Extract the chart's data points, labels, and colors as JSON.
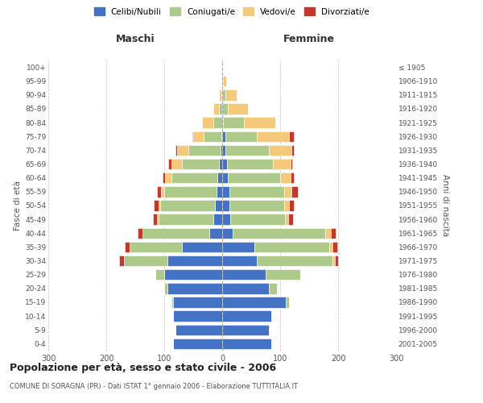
{
  "age_groups": [
    "0-4",
    "5-9",
    "10-14",
    "15-19",
    "20-24",
    "25-29",
    "30-34",
    "35-39",
    "40-44",
    "45-49",
    "50-54",
    "55-59",
    "60-64",
    "65-69",
    "70-74",
    "75-79",
    "80-84",
    "85-89",
    "90-94",
    "95-99",
    "100+"
  ],
  "birth_years": [
    "2001-2005",
    "1996-2000",
    "1991-1995",
    "1986-1990",
    "1981-1985",
    "1976-1980",
    "1971-1975",
    "1966-1970",
    "1961-1965",
    "1956-1960",
    "1951-1955",
    "1946-1950",
    "1941-1945",
    "1936-1940",
    "1931-1935",
    "1926-1930",
    "1921-1925",
    "1916-1920",
    "1911-1915",
    "1906-1910",
    "≤ 1905"
  ],
  "colors": {
    "celibi": "#4472C4",
    "coniugati": "#AECA8A",
    "vedovi": "#F5C97A",
    "divorziati": "#C0392B"
  },
  "males": {
    "celibi": [
      85,
      80,
      85,
      85,
      95,
      100,
      95,
      70,
      22,
      15,
      12,
      10,
      8,
      5,
      3,
      2,
      0,
      0,
      0,
      0,
      0
    ],
    "coniugati": [
      0,
      0,
      0,
      2,
      5,
      15,
      75,
      90,
      115,
      95,
      95,
      90,
      80,
      65,
      55,
      30,
      15,
      5,
      2,
      1,
      0
    ],
    "vedovi": [
      0,
      0,
      0,
      0,
      0,
      0,
      0,
      0,
      1,
      2,
      3,
      5,
      10,
      18,
      20,
      18,
      20,
      10,
      3,
      1,
      0
    ],
    "divorziati": [
      0,
      0,
      0,
      0,
      0,
      0,
      8,
      8,
      8,
      8,
      8,
      8,
      5,
      5,
      2,
      2,
      0,
      0,
      0,
      0,
      0
    ]
  },
  "females": {
    "nubili": [
      85,
      80,
      85,
      110,
      80,
      75,
      60,
      55,
      18,
      14,
      12,
      12,
      10,
      8,
      5,
      5,
      2,
      0,
      0,
      0,
      0
    ],
    "coniugate": [
      0,
      0,
      0,
      5,
      15,
      60,
      130,
      130,
      160,
      95,
      95,
      95,
      90,
      80,
      75,
      55,
      35,
      10,
      5,
      2,
      0
    ],
    "vedove": [
      0,
      0,
      0,
      0,
      0,
      0,
      5,
      5,
      10,
      5,
      8,
      12,
      18,
      30,
      40,
      55,
      55,
      35,
      20,
      5,
      0
    ],
    "divorziate": [
      0,
      0,
      0,
      0,
      0,
      0,
      5,
      8,
      8,
      8,
      8,
      12,
      5,
      3,
      3,
      8,
      0,
      0,
      0,
      0,
      0
    ]
  },
  "title": "Popolazione per età, sesso e stato civile - 2006",
  "subtitle": "COMUNE DI SORAGNA (PR) - Dati ISTAT 1° gennaio 2006 - Elaborazione TUTTITALIA.IT",
  "xlabel_left": "Maschi",
  "xlabel_right": "Femmine",
  "ylabel_left": "Fasce di età",
  "ylabel_right": "Anni di nascita",
  "xlim": 300,
  "legend_labels": [
    "Celibi/Nubili",
    "Coniugati/e",
    "Vedovi/e",
    "Divorziati/e"
  ],
  "background_color": "#ffffff",
  "grid_color": "#cccccc"
}
